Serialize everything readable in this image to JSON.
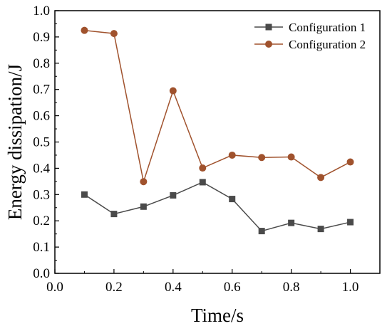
{
  "chart_data": {
    "type": "line",
    "xlabel": "Time/s",
    "ylabel": "Energy dissipation/J",
    "xlim": [
      0.0,
      1.1
    ],
    "ylim": [
      0.0,
      1.0
    ],
    "x_ticks": [
      "0.0",
      "0.2",
      "0.4",
      "0.6",
      "0.8",
      "1.0"
    ],
    "y_ticks": [
      "0.0",
      "0.1",
      "0.2",
      "0.3",
      "0.4",
      "0.5",
      "0.6",
      "0.7",
      "0.8",
      "0.9",
      "1.0"
    ],
    "grid": false,
    "legend_position": "top-right",
    "series": [
      {
        "name": "Configuration 1",
        "marker": "square",
        "color": "#4a4a4a",
        "x": [
          0.1,
          0.2,
          0.3,
          0.4,
          0.5,
          0.6,
          0.7,
          0.8,
          0.9,
          1.0
        ],
        "values": [
          0.3,
          0.226,
          0.254,
          0.297,
          0.347,
          0.283,
          0.161,
          0.192,
          0.169,
          0.195
        ]
      },
      {
        "name": "Configuration 2",
        "marker": "circle",
        "color": "#a0522d",
        "x": [
          0.1,
          0.2,
          0.3,
          0.4,
          0.5,
          0.6,
          0.7,
          0.8,
          0.9,
          1.0
        ],
        "values": [
          0.925,
          0.913,
          0.349,
          0.695,
          0.401,
          0.45,
          0.441,
          0.443,
          0.365,
          0.424
        ]
      }
    ]
  }
}
